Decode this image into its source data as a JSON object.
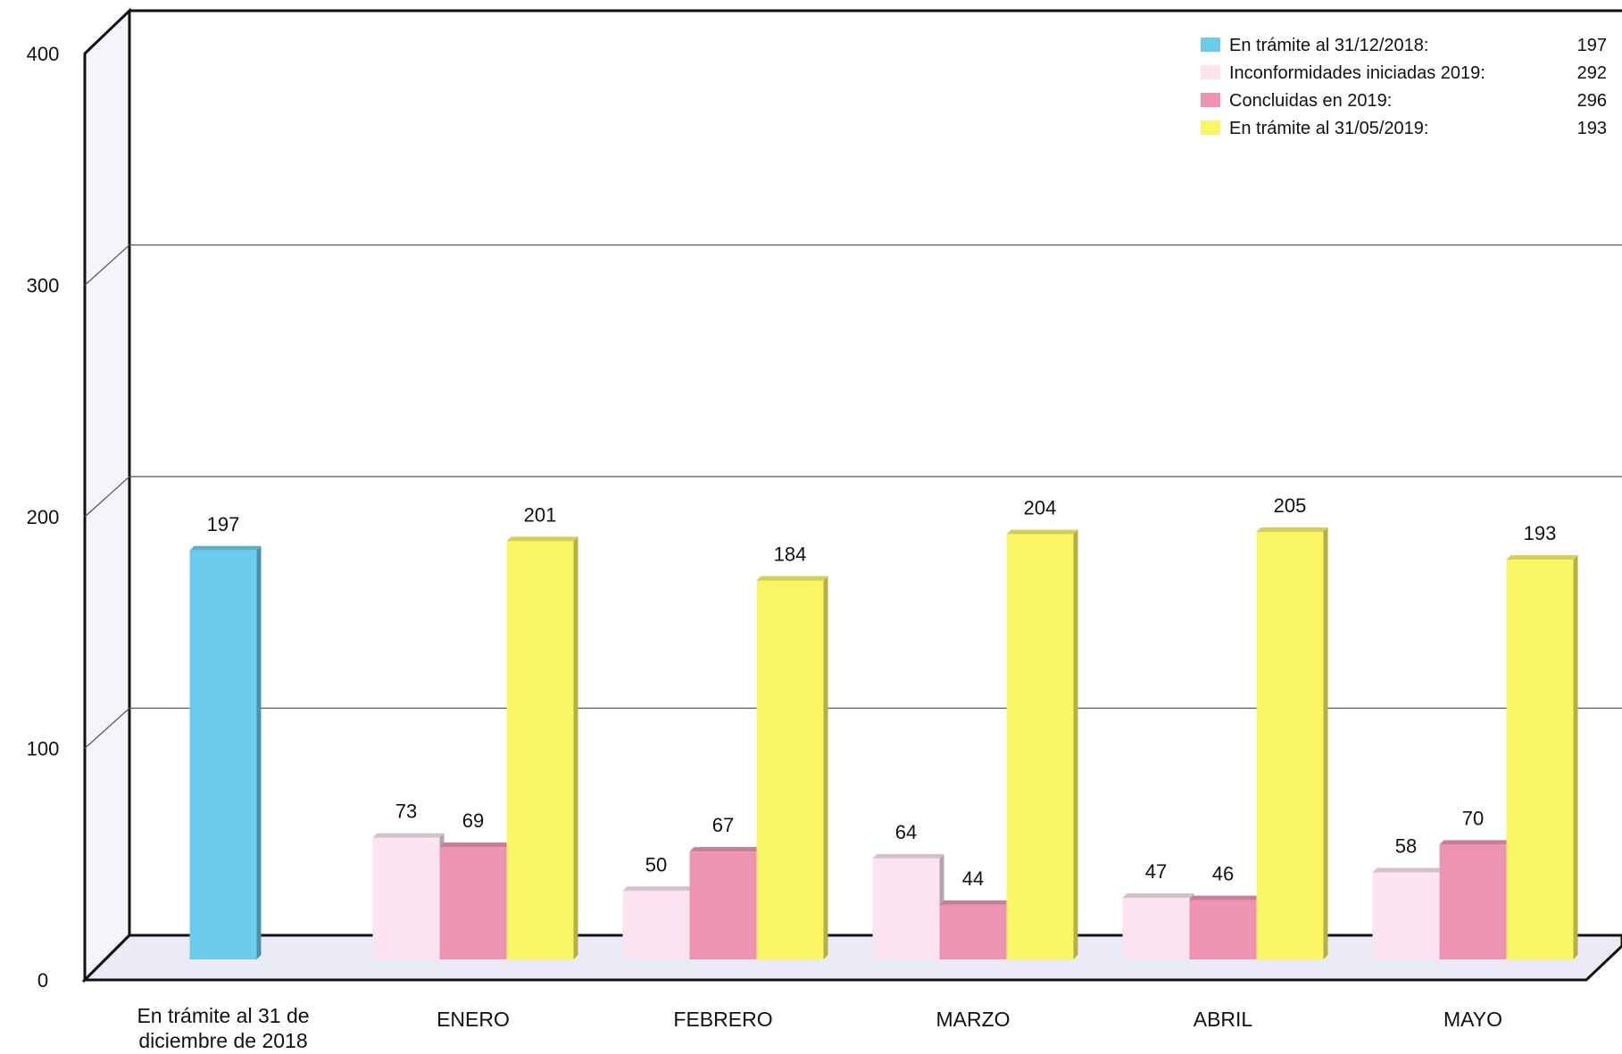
{
  "chart_data": {
    "type": "bar",
    "title": "",
    "xlabel": "",
    "ylabel": "",
    "ylim": [
      0,
      400
    ],
    "yticks": [
      "0",
      "100",
      "200",
      "300",
      "400"
    ],
    "grid": true,
    "legend_position": "top-right",
    "categories": [
      [
        "En trámite al 31 de",
        "diciembre de 2018"
      ],
      [
        "ENERO"
      ],
      [
        "FEBRERO"
      ],
      [
        "MARZO"
      ],
      [
        "ABRIL"
      ],
      [
        "MAYO"
      ]
    ],
    "series": [
      {
        "name": "En trámite al 31/12/2018:",
        "total": "197",
        "color": "#6ccbea",
        "values": [
          197,
          null,
          null,
          null,
          null,
          null
        ]
      },
      {
        "name": "Inconformidades iniciadas 2019:",
        "total": "292",
        "color": "#fbe3ef",
        "values": [
          null,
          73,
          50,
          64,
          47,
          58
        ]
      },
      {
        "name": "Concluidas en 2019:",
        "total": "296",
        "color": "#ec94b2",
        "values": [
          null,
          69,
          67,
          44,
          46,
          70
        ]
      },
      {
        "name": "En trámite al 31/05/2019:",
        "total": "193",
        "color": "#f9f564",
        "values": [
          null,
          201,
          184,
          204,
          205,
          193
        ]
      }
    ]
  }
}
